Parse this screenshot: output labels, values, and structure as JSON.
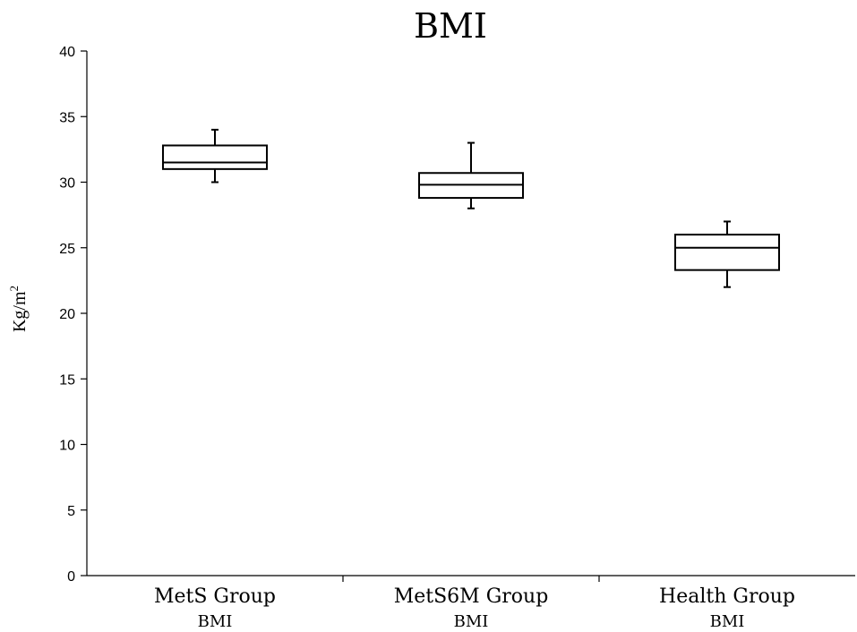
{
  "chart_data": {
    "type": "box",
    "title": "BMI",
    "ylabel": "Kg/m",
    "ylabel_sup": "2",
    "ylim": [
      0,
      40
    ],
    "yticks": [
      0,
      5,
      10,
      15,
      20,
      25,
      30,
      35,
      40
    ],
    "grid": false,
    "categories": [
      {
        "label": "MetS Group",
        "sublabel": "BMI"
      },
      {
        "label": "MetS6M Group",
        "sublabel": "BMI"
      },
      {
        "label": "Health Group",
        "sublabel": "BMI"
      }
    ],
    "boxes": [
      {
        "min": 30.0,
        "q1": 31.0,
        "median": 31.5,
        "q3": 32.8,
        "max": 34.0
      },
      {
        "min": 28.0,
        "q1": 28.8,
        "median": 29.8,
        "q3": 30.7,
        "max": 33.0
      },
      {
        "min": 22.0,
        "q1": 23.3,
        "median": 25.0,
        "q3": 26.0,
        "max": 27.0
      }
    ]
  }
}
